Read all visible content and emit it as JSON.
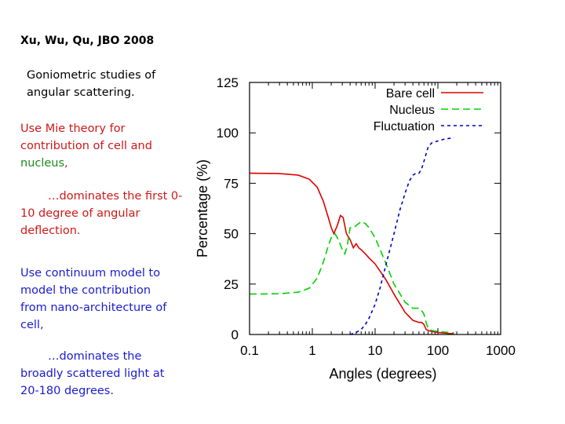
{
  "slide": {
    "citation": "Xu, Wu, Qu, JBO 2008",
    "subtitle": "Goniometric studies of angular scattering.",
    "mie_red": "Use Mie theory for contribution of cell and",
    "mie_green": "nucleus",
    "mie_comma": ",",
    "mie_dominates": "…dominates the first 0-10 degree of angular deflection.",
    "continuum": "Use continuum model to model the contribution from nano-architecture of cell,",
    "continuum_dominates": "…dominates the broadly scattered light  at 20-180 degrees."
  },
  "colors": {
    "red": "#d01818",
    "green": "#1c8a1c",
    "blue": "#1a1ad0"
  },
  "chart_data": {
    "type": "line",
    "xlabel": "Angles (degrees)",
    "ylabel": "Percentage (%)",
    "x_scale": "log",
    "xlim": [
      0.1,
      1000
    ],
    "ylim": [
      0,
      125
    ],
    "xticks": [
      0.1,
      1,
      10,
      100,
      1000
    ],
    "xtick_labels": [
      "0.1",
      "1",
      "10",
      "100",
      "1000"
    ],
    "yticks": [
      0,
      25,
      50,
      75,
      100,
      125
    ],
    "ytick_labels": [
      "0",
      "25",
      "50",
      "75",
      "100",
      "125"
    ],
    "legend_position": "top-right",
    "grid": false,
    "series": [
      {
        "name": "Bare cell",
        "color": "#e00000",
        "style": "solid",
        "x": [
          0.1,
          0.3,
          0.6,
          0.9,
          1.2,
          1.5,
          1.8,
          2.0,
          2.2,
          2.5,
          2.8,
          3.1,
          3.5,
          4.0,
          4.5,
          5.0,
          5.5,
          6.0,
          7.0,
          8.0,
          10,
          15,
          20,
          30,
          40,
          50,
          55,
          60,
          65,
          70,
          80,
          100,
          150,
          180
        ],
        "y": [
          80,
          79.8,
          79,
          77,
          73,
          66,
          58,
          53,
          50,
          54,
          59,
          58,
          50,
          47,
          43,
          45,
          43,
          42,
          40,
          38,
          35,
          27,
          20,
          11,
          7,
          6,
          6,
          5,
          2.5,
          2,
          1.5,
          1,
          0.5,
          0.3
        ]
      },
      {
        "name": "Nucleus",
        "color": "#00d000",
        "style": "dashed",
        "x": [
          0.1,
          0.3,
          0.6,
          0.9,
          1.2,
          1.5,
          1.8,
          2.0,
          2.3,
          2.6,
          3.0,
          3.3,
          3.6,
          4.0,
          4.5,
          5.0,
          6.0,
          7.0,
          8.0,
          10,
          15,
          20,
          30,
          40,
          50,
          55,
          60,
          65,
          70,
          80,
          100,
          150,
          180
        ],
        "y": [
          20,
          20.2,
          21,
          23,
          28,
          36,
          44,
          48,
          50,
          47,
          42,
          40,
          44,
          53,
          53,
          54,
          56,
          55,
          53,
          48,
          35,
          25,
          16,
          13,
          13,
          12,
          10,
          6,
          3,
          2,
          1.5,
          1,
          0.8
        ]
      },
      {
        "name": "Fluctuation",
        "color": "#0000c0",
        "style": "dotted",
        "x": [
          4,
          5,
          6,
          7,
          8,
          10,
          12,
          15,
          20,
          25,
          30,
          35,
          40,
          45,
          50,
          55,
          60,
          70,
          80,
          100,
          130,
          180
        ],
        "y": [
          0,
          1,
          2.5,
          5,
          8,
          15,
          23,
          35,
          50,
          62,
          70,
          76,
          79,
          80,
          80,
          82,
          86,
          93,
          95,
          96,
          97,
          97.5
        ]
      }
    ]
  }
}
